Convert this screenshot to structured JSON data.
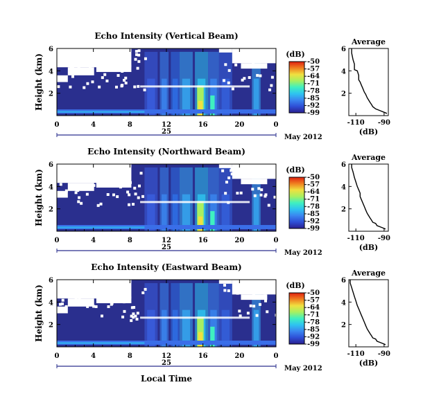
{
  "figure": {
    "xlabel": "Local Time",
    "date_label": "May 2012",
    "day_label": "25",
    "colorbar_unit": "(dB)",
    "colorbar_ticks": [
      "-50",
      "-57",
      "-64",
      "-71",
      "-78",
      "-85",
      "-92",
      "-99"
    ],
    "colors": {
      "cmap": [
        "#2a1f8e",
        "#2e4fd6",
        "#3a86f0",
        "#2ec4f0",
        "#3ff0c0",
        "#a8f060",
        "#f0e040",
        "#f08020",
        "#e02010"
      ]
    }
  },
  "chart_data": [
    {
      "type": "heatmap",
      "title": "Echo Intensity (Vertical Beam)",
      "ylabel": "Height (km)",
      "xlabel": "",
      "x_ticks": [
        "0",
        "4",
        "8",
        "12",
        "16",
        "20",
        "0"
      ],
      "y_ticks": [
        "6",
        "4",
        "2"
      ],
      "ylim": [
        0,
        6
      ],
      "xlim": [
        0,
        24
      ],
      "colorbar": {
        "label": "(dB)",
        "range": [
          -99,
          -50
        ]
      }
    },
    {
      "type": "line",
      "title": "Average",
      "xlabel": "(dB)",
      "x_ticks": [
        "-110",
        "-90"
      ],
      "y_ticks": [
        "6",
        "4",
        "2"
      ],
      "xlim": [
        -115,
        -87
      ],
      "ylim": [
        0,
        6
      ],
      "x": [
        -113,
        -113,
        -112,
        -111,
        -111,
        -109,
        -108,
        -108,
        -107,
        -106,
        -105,
        -104,
        -103,
        -102,
        -101,
        -100,
        -99,
        -98,
        -96,
        -94,
        -92,
        -90,
        -88
      ],
      "y": [
        6.0,
        5.6,
        5.0,
        4.6,
        4.1,
        4.0,
        3.6,
        3.2,
        3.0,
        2.7,
        2.4,
        2.1,
        1.9,
        1.6,
        1.4,
        1.2,
        1.0,
        0.8,
        0.6,
        0.5,
        0.4,
        0.3,
        0.2
      ]
    },
    {
      "type": "heatmap",
      "title": "Echo Intensity (Northward Beam)",
      "ylabel": "Height (km)",
      "xlabel": "",
      "x_ticks": [
        "0",
        "4",
        "8",
        "12",
        "16",
        "20",
        "0"
      ],
      "y_ticks": [
        "6",
        "4",
        "2"
      ],
      "ylim": [
        0,
        6
      ],
      "xlim": [
        0,
        24
      ],
      "colorbar": {
        "label": "(dB)",
        "range": [
          -99,
          -50
        ]
      }
    },
    {
      "type": "line",
      "title": "Average",
      "xlabel": "(dB)",
      "x_ticks": [
        "-110",
        "-90"
      ],
      "y_ticks": [
        "6",
        "4",
        "2"
      ],
      "xlim": [
        -115,
        -87
      ],
      "ylim": [
        0,
        6
      ],
      "x": [
        -113,
        -113,
        -112,
        -111,
        -110,
        -109,
        -108,
        -107,
        -107,
        -106,
        -105,
        -104,
        -103,
        -102,
        -101,
        -100,
        -99,
        -98,
        -96,
        -95,
        -93,
        -91,
        -89
      ],
      "y": [
        6.0,
        5.7,
        5.3,
        4.8,
        4.4,
        4.0,
        3.7,
        3.4,
        3.1,
        2.8,
        2.5,
        2.2,
        1.9,
        1.6,
        1.4,
        1.2,
        1.0,
        0.8,
        0.7,
        0.5,
        0.4,
        0.3,
        0.2
      ]
    },
    {
      "type": "heatmap",
      "title": "Echo Intensity (Eastward Beam)",
      "ylabel": "Height (km)",
      "xlabel": "Local Time",
      "x_ticks": [
        "0",
        "4",
        "8",
        "12",
        "16",
        "20",
        "0"
      ],
      "y_ticks": [
        "6",
        "4",
        "2"
      ],
      "ylim": [
        0,
        6
      ],
      "xlim": [
        0,
        24
      ],
      "colorbar": {
        "label": "(dB)",
        "range": [
          -99,
          -50
        ]
      }
    },
    {
      "type": "line",
      "title": "Average",
      "xlabel": "(dB)",
      "x_ticks": [
        "-110",
        "-90"
      ],
      "y_ticks": [
        "6",
        "4",
        "2"
      ],
      "xlim": [
        -115,
        -87
      ],
      "ylim": [
        0,
        6
      ],
      "x": [
        -114,
        -114,
        -113,
        -112,
        -111,
        -110,
        -109,
        -108,
        -107,
        -106,
        -105,
        -104,
        -103,
        -102,
        -101,
        -100,
        -99,
        -98,
        -96,
        -95,
        -93,
        -91,
        -89
      ],
      "y": [
        6.0,
        5.7,
        5.3,
        4.9,
        4.5,
        4.1,
        3.7,
        3.4,
        3.1,
        2.8,
        2.5,
        2.2,
        1.9,
        1.6,
        1.4,
        1.2,
        1.0,
        0.8,
        0.7,
        0.5,
        0.4,
        0.3,
        0.2
      ]
    }
  ]
}
